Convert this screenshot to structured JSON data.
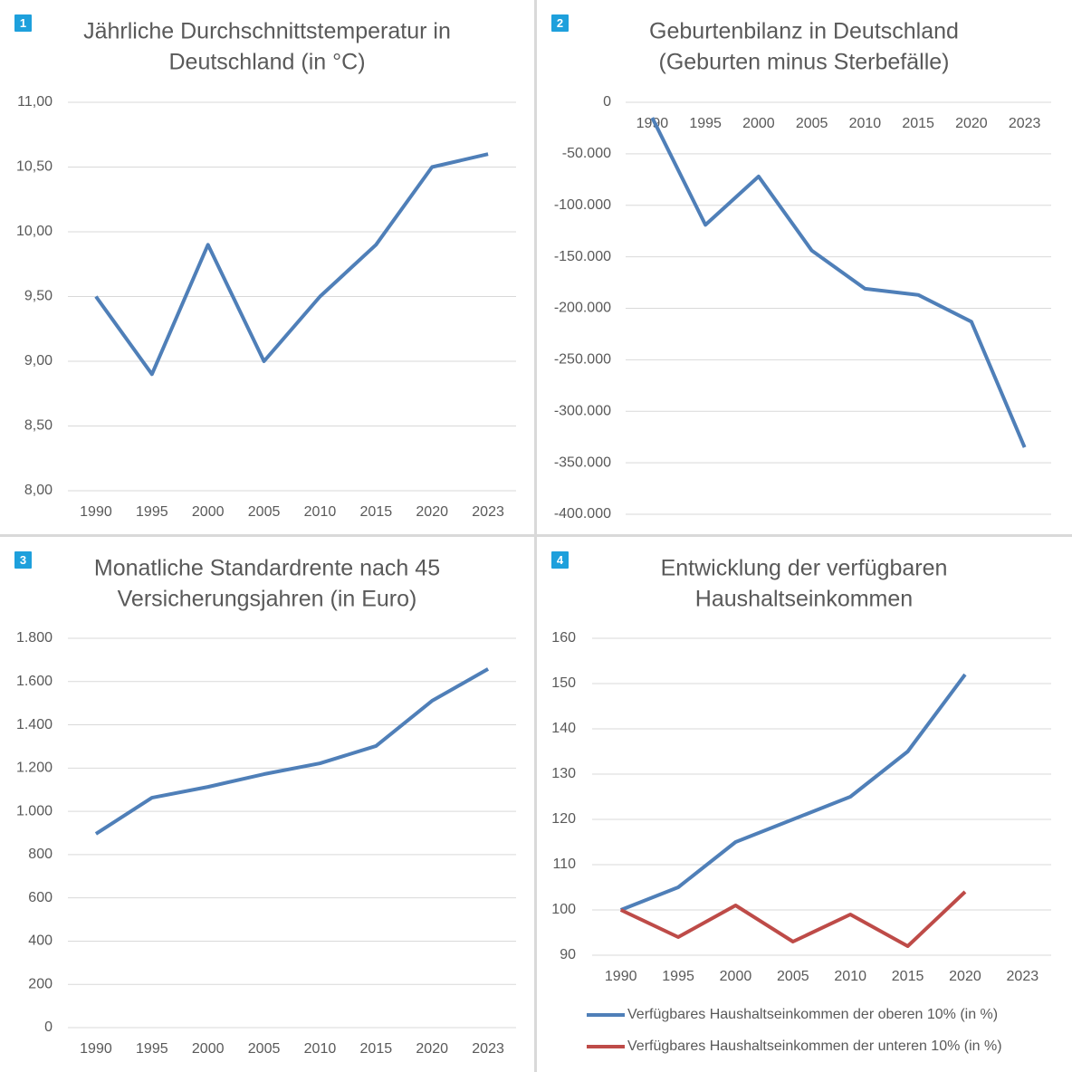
{
  "chart_data": [
    {
      "type": "line",
      "badge": "1",
      "title": [
        "Jährliche Durchschnittstemperatur in",
        "Deutschland (in °C)"
      ],
      "categories": [
        "1990",
        "1995",
        "2000",
        "2005",
        "2010",
        "2015",
        "2020",
        "2023"
      ],
      "values": [
        9.5,
        8.9,
        9.9,
        9.0,
        9.5,
        9.9,
        10.5,
        10.6
      ],
      "color": "#4f7fb8",
      "ylim": [
        8,
        11
      ],
      "yticks": [
        {
          "value": 8,
          "label": "8,00"
        },
        {
          "value": 8.5,
          "label": "8,50"
        },
        {
          "value": 9,
          "label": "9,00"
        },
        {
          "value": 9.5,
          "label": "9,50"
        },
        {
          "value": 10,
          "label": "10,00"
        },
        {
          "value": 10.5,
          "label": "10,50"
        },
        {
          "value": 11,
          "label": "11,00"
        }
      ],
      "grid": true
    },
    {
      "type": "line",
      "badge": "2",
      "title": [
        "Geburtenbilanz in Deutschland",
        "(Geburten minus Sterbefälle)"
      ],
      "categories": [
        "1990",
        "1995",
        "2000",
        "2005",
        "2010",
        "2015",
        "2020",
        "2023"
      ],
      "values": [
        -15000,
        -119000,
        -72000,
        -144000,
        -181000,
        -187000,
        -213000,
        -335000
      ],
      "color": "#4f7fb8",
      "ylim": [
        -400000,
        0
      ],
      "yticks": [
        {
          "value": -400000,
          "label": "-400.000"
        },
        {
          "value": -350000,
          "label": "-350.000"
        },
        {
          "value": -300000,
          "label": "-300.000"
        },
        {
          "value": -250000,
          "label": "-250.000"
        },
        {
          "value": -200000,
          "label": "-200.000"
        },
        {
          "value": -150000,
          "label": "-150.000"
        },
        {
          "value": -100000,
          "label": "-100.000"
        },
        {
          "value": -50000,
          "label": "-50.000"
        },
        0
      ],
      "grid": true
    },
    {
      "type": "line",
      "badge": "3",
      "title": [
        "Monatliche Standardrente nach 45",
        "Versicherungsjahren (in Euro)"
      ],
      "categories": [
        "1990",
        "1995",
        "2000",
        "2005",
        "2010",
        "2015",
        "2020",
        "2023"
      ],
      "values": [
        896,
        1063,
        1113,
        1172,
        1222,
        1302,
        1511,
        1658
      ],
      "color": "#4f7fb8",
      "ylim": [
        0,
        1800
      ],
      "yticks": [
        0,
        200,
        400,
        600,
        800,
        {
          "value": 1000,
          "label": "1.000"
        },
        {
          "value": 1200,
          "label": "1.200"
        },
        {
          "value": 1400,
          "label": "1.400"
        },
        {
          "value": 1600,
          "label": "1.600"
        },
        {
          "value": 1800,
          "label": "1.800"
        }
      ],
      "grid": true
    },
    {
      "type": "line",
      "badge": "4",
      "title": [
        "Entwicklung der verfügbaren",
        "Haushaltseinkommen"
      ],
      "categories": [
        "1990",
        "1995",
        "2000",
        "2005",
        "2010",
        "2015",
        "2020",
        "2023"
      ],
      "series": [
        {
          "name": "Verfügbares Haushaltseinkommen der oberen 10% (in %)",
          "color": "#4f7fb8",
          "values": [
            100,
            105,
            115,
            120,
            125,
            135,
            152,
            null
          ]
        },
        {
          "name": "Verfügbares Haushaltseinkommen der unteren 10% (in %)",
          "color": "#be4b48",
          "values": [
            100,
            94,
            101,
            93,
            99,
            92,
            104,
            null
          ]
        }
      ],
      "ylim": [
        90,
        160
      ],
      "yticks": [
        90,
        100,
        110,
        120,
        130,
        140,
        150,
        160
      ],
      "grid": true,
      "legend": "bottom"
    }
  ]
}
